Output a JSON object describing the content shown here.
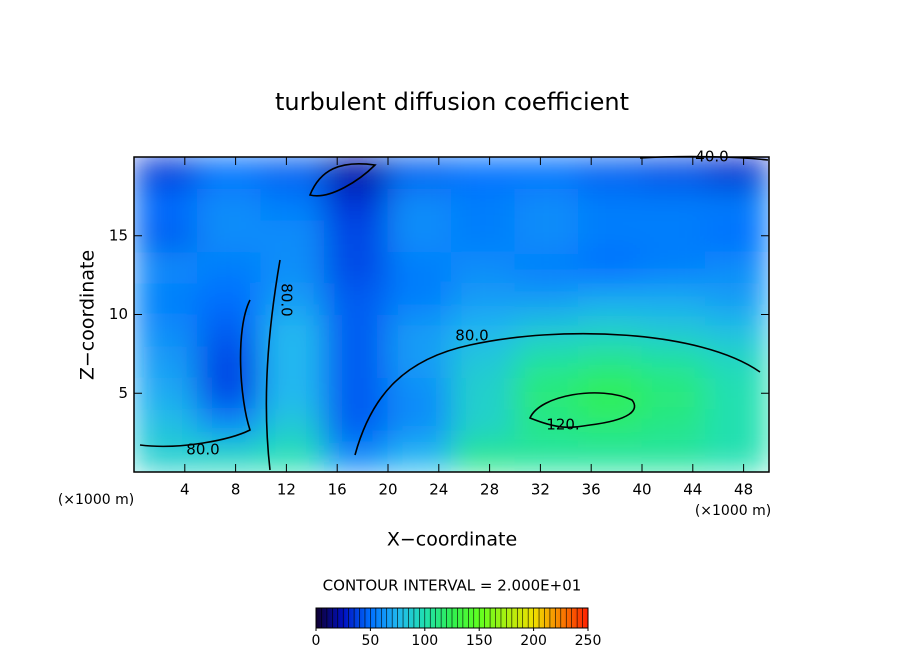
{
  "chart_data": {
    "type": "contour",
    "title": "turbulent diffusion coefficient",
    "xlabel": "X−coordinate",
    "ylabel": "Z−coordinate",
    "xunit": "(×1000 m)",
    "interval_note": "CONTOUR INTERVAL = 2.000E+01",
    "xlim": [
      0,
      50
    ],
    "ylim": [
      0,
      20
    ],
    "xticks": [
      4,
      8,
      12,
      16,
      20,
      24,
      28,
      32,
      36,
      40,
      44,
      48
    ],
    "yticks": [
      5,
      10,
      15
    ],
    "x": [
      2.5,
      7.5,
      12.5,
      17.5,
      22.5,
      27.5,
      32.5,
      37.5,
      42.5,
      47.5
    ],
    "y": [
      1,
      3,
      5,
      7,
      9,
      11,
      13,
      15,
      17,
      19
    ],
    "values": [
      [
        90,
        95,
        100,
        60,
        75,
        110,
        105,
        105,
        105,
        100
      ],
      [
        80,
        60,
        85,
        45,
        60,
        90,
        110,
        115,
        110,
        100
      ],
      [
        70,
        40,
        75,
        45,
        60,
        90,
        115,
        125,
        115,
        100
      ],
      [
        65,
        40,
        75,
        45,
        65,
        85,
        105,
        110,
        105,
        95
      ],
      [
        60,
        45,
        75,
        45,
        65,
        75,
        85,
        90,
        85,
        80
      ],
      [
        55,
        50,
        65,
        45,
        55,
        65,
        65,
        70,
        70,
        65
      ],
      [
        60,
        55,
        60,
        40,
        55,
        60,
        55,
        50,
        55,
        60
      ],
      [
        45,
        60,
        60,
        40,
        60,
        55,
        60,
        55,
        55,
        50
      ],
      [
        50,
        60,
        55,
        35,
        60,
        55,
        60,
        55,
        55,
        55
      ],
      [
        35,
        50,
        45,
        20,
        45,
        50,
        50,
        45,
        40,
        30
      ]
    ],
    "contour_labels": [
      "80.0",
      "120.",
      "80.0",
      "80.0",
      "40.0"
    ],
    "clim": [
      0,
      250
    ],
    "cticks": [
      0,
      50,
      100,
      150,
      200,
      250
    ]
  }
}
